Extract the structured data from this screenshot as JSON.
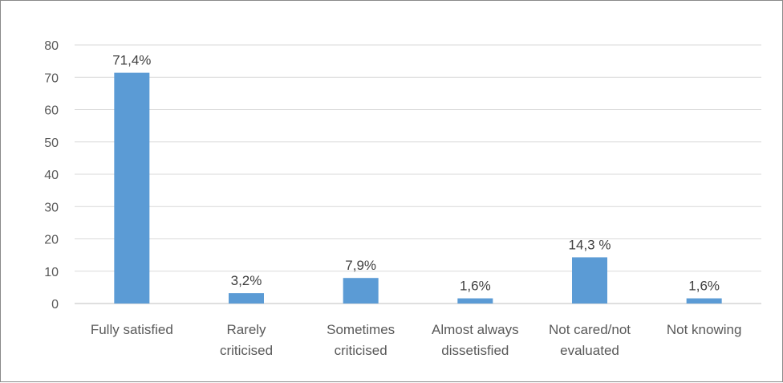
{
  "chart_data": {
    "type": "bar",
    "categories": [
      [
        "Fully satisfied"
      ],
      [
        "Rarely",
        "criticised"
      ],
      [
        "Sometimes",
        "criticised"
      ],
      [
        "Almost always",
        "dissetisfied"
      ],
      [
        "Not cared/not",
        "evaluated"
      ],
      [
        "Not knowing"
      ]
    ],
    "values": [
      71.4,
      3.2,
      7.9,
      1.6,
      14.3,
      1.6
    ],
    "data_labels": [
      "71,4%",
      "3,2%",
      "7,9%",
      "1,6%",
      "14,3 %",
      "1,6%"
    ],
    "ylim": [
      0,
      80
    ],
    "yticks": [
      "0",
      "10",
      "20",
      "30",
      "40",
      "50",
      "60",
      "70",
      "80"
    ],
    "grid": true,
    "title": "",
    "xlabel": "",
    "ylabel": "",
    "colors": {
      "bar": "#5b9bd5",
      "grid": "#d9d9d9",
      "axis": "#bfbfbf"
    }
  }
}
